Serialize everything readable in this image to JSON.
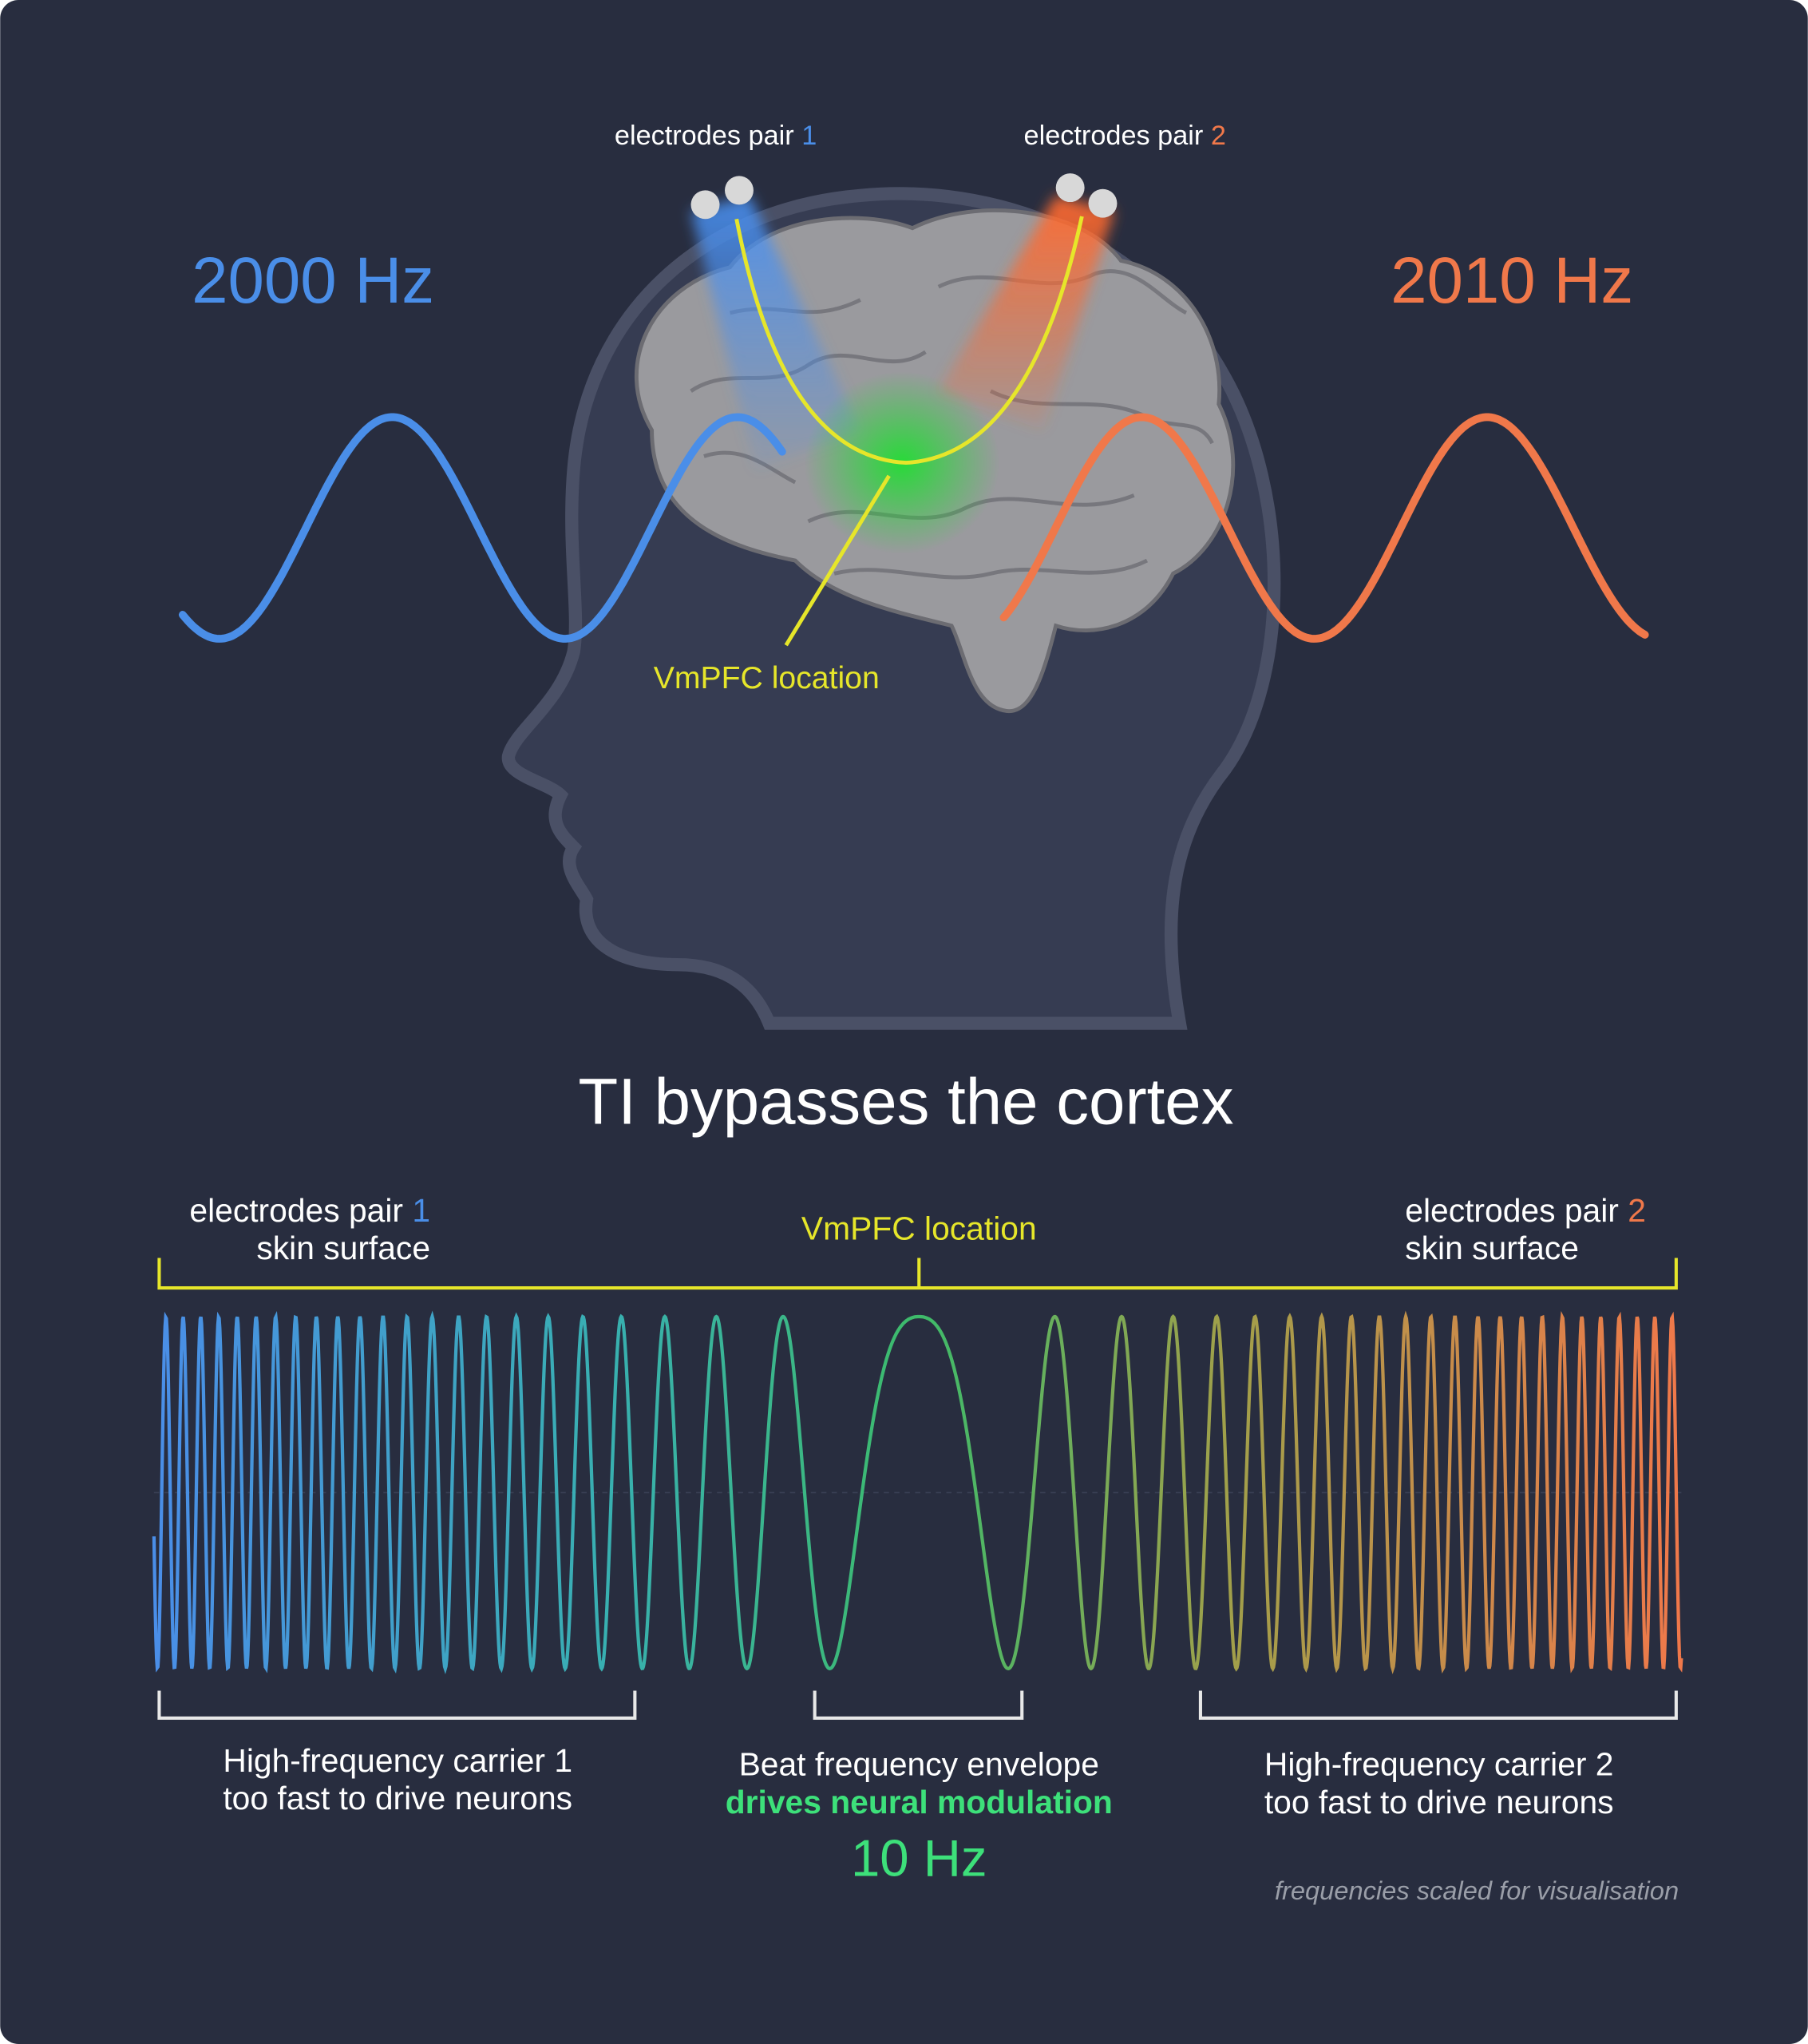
{
  "top": {
    "left_frequency": "2000 Hz",
    "right_frequency": "2010 Hz",
    "pair1": {
      "label": "electrodes pair",
      "number": "1"
    },
    "pair2": {
      "label": "electrodes pair",
      "number": "2"
    },
    "target": "VmPFC location"
  },
  "title": "TI bypasses the cortex",
  "bottom": {
    "pair1": {
      "label": "electrodes pair",
      "number": "1",
      "sub": "skin surface"
    },
    "pair2": {
      "label": "electrodes pair",
      "number": "2",
      "sub": "skin surface"
    },
    "target": "VmPFC location",
    "carrier1": [
      "High-frequency carrier 1",
      "too fast to drive neurons"
    ],
    "envelope": [
      "Beat frequency envelope",
      "drives neural modulation",
      "10 Hz"
    ],
    "carrier2": [
      "High-frequency carrier 2",
      "too fast to drive neurons"
    ],
    "note": "frequencies scaled for visualisation"
  }
}
